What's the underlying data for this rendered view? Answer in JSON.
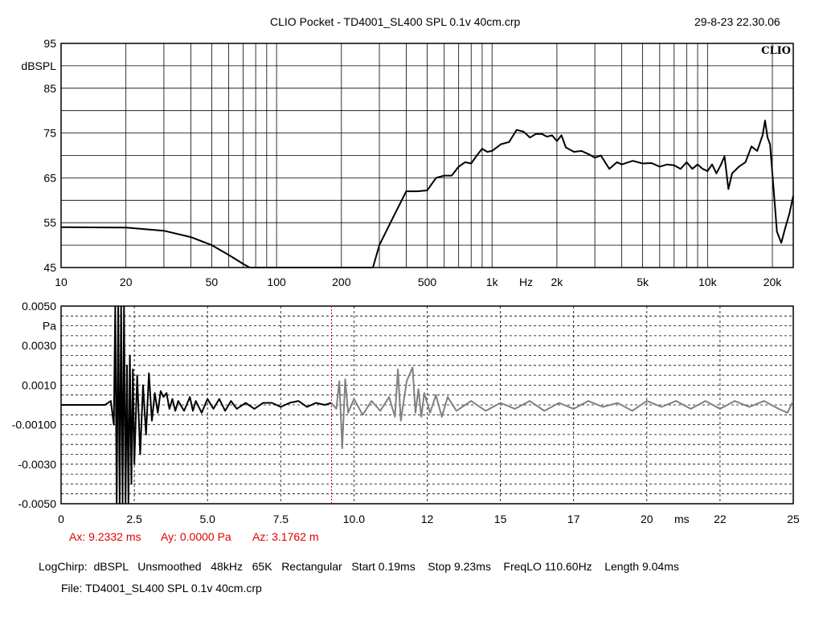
{
  "header": {
    "title": "CLIO Pocket - TD4001_SL400 SPL 0.1v 40cm.crp",
    "timestamp": "29-8-23 22.30.06",
    "logo": "CLIO"
  },
  "colors": {
    "trace": "#000000",
    "trace_after_cursor": "#808080",
    "cursor": "#cc0000",
    "readout": "#e00000"
  },
  "chart_data": [
    {
      "type": "line",
      "title": "",
      "xlabel": "Hz",
      "ylabel": "dBSPL",
      "xscale": "log",
      "xlim": [
        10,
        25000
      ],
      "ylim": [
        45,
        95
      ],
      "grid": true,
      "x_ticks": [
        "10",
        "20",
        "50",
        "100",
        "200",
        "500",
        "1k",
        "2k",
        "5k",
        "10k",
        "20k"
      ],
      "y_ticks": [
        "95",
        "85",
        "75",
        "65",
        "55",
        "45"
      ],
      "series": [
        {
          "x": [
            10,
            20,
            30,
            40,
            50,
            60,
            70,
            75,
            100,
            200,
            280,
            300,
            350,
            400,
            450,
            500,
            550,
            600,
            650,
            700,
            750,
            800,
            850,
            900,
            950,
            1000,
            1100,
            1200,
            1300,
            1400,
            1500,
            1600,
            1700,
            1800,
            1900,
            2000,
            2100,
            2200,
            2400,
            2600,
            2800,
            3000,
            3200,
            3500,
            3800,
            4000,
            4500,
            5000,
            5500,
            6000,
            6500,
            7000,
            7500,
            8000,
            8500,
            9000,
            9500,
            10000,
            10500,
            11000,
            11500,
            12000,
            12500,
            13000,
            14000,
            15000,
            16000,
            17000,
            18000,
            18500,
            19000,
            19500,
            20000,
            21000,
            22000,
            23000,
            24000,
            25000
          ],
          "y": [
            54,
            53.9,
            53.2,
            51.8,
            50,
            47.8,
            45.8,
            45,
            45,
            45,
            45,
            50,
            56.5,
            62,
            62,
            62.2,
            65,
            65.5,
            65.5,
            67.5,
            68.5,
            68.2,
            70,
            71.5,
            70.8,
            71,
            72.5,
            73,
            75.7,
            75.3,
            74,
            74.8,
            74.8,
            74.2,
            74.5,
            73.2,
            74.5,
            71.8,
            70.8,
            71,
            70.3,
            69.5,
            70,
            67,
            68.5,
            68,
            68.8,
            68.2,
            68.3,
            67.5,
            68,
            67.8,
            67,
            68.5,
            67,
            68,
            67,
            66.5,
            68,
            66,
            67.8,
            69.8,
            62.5,
            66,
            67.5,
            68.5,
            72,
            71,
            74.5,
            77.8,
            74,
            72.5,
            66,
            53,
            50.5,
            54,
            57,
            61
          ]
        }
      ]
    },
    {
      "type": "line",
      "title": "",
      "xlabel": "ms",
      "ylabel": "Pa",
      "xlim": [
        0,
        25
      ],
      "ylim": [
        -0.005,
        0.005
      ],
      "grid": true,
      "x_ticks": [
        "0",
        "2.5",
        "5.0",
        "7.5",
        "10.0",
        "12",
        "15",
        "17",
        "20",
        "22",
        "25"
      ],
      "y_ticks": [
        "0.0050",
        "0.0030",
        "0.0010",
        "-0.00100",
        "-0.0030",
        "-0.0050"
      ],
      "cursor_x": 9.2332,
      "series": [
        {
          "x": [
            0,
            1.5,
            1.7,
            1.8,
            1.85,
            1.9,
            1.95,
            2.0,
            2.05,
            2.1,
            2.15,
            2.2,
            2.25,
            2.3,
            2.35,
            2.4,
            2.45,
            2.5,
            2.6,
            2.7,
            2.8,
            2.9,
            3.0,
            3.1,
            3.2,
            3.3,
            3.4,
            3.5,
            3.6,
            3.7,
            3.8,
            3.9,
            4.0,
            4.2,
            4.4,
            4.5,
            4.6,
            4.8,
            5.0,
            5.2,
            5.4,
            5.6,
            5.8,
            6.0,
            6.3,
            6.6,
            6.9,
            7.2,
            7.5,
            7.8,
            8.1,
            8.4,
            8.7,
            9.0,
            9.23
          ],
          "y": [
            0,
            0,
            0.0002,
            -0.001,
            0.005,
            -0.005,
            0.005,
            -0.005,
            0.005,
            -0.005,
            0.005,
            -0.005,
            0.002,
            -0.005,
            0.0025,
            -0.004,
            0.0018,
            -0.003,
            0.0015,
            -0.0025,
            0.001,
            -0.0015,
            0.0016,
            -0.0008,
            0.0006,
            -0.0004,
            0.0007,
            0.0004,
            0.0006,
            -0.0002,
            0.0003,
            -0.0003,
            0.0002,
            -0.0003,
            0.0004,
            -0.0003,
            0.0002,
            -0.0004,
            0.0003,
            -0.0002,
            0.0003,
            -0.0003,
            0.0002,
            -0.0002,
            0.0001,
            -0.0002,
            0.0001,
            0.0001,
            -0.0001,
            0.0001,
            0.0002,
            -0.0001,
            0.0001,
            0.0,
            0.0001
          ]
        },
        {
          "x": [
            9.23,
            9.4,
            9.5,
            9.6,
            9.7,
            9.8,
            10.0,
            10.3,
            10.6,
            10.9,
            11.2,
            11.4,
            11.5,
            11.6,
            11.8,
            12.0,
            12.1,
            12.2,
            12.3,
            12.4,
            12.6,
            12.8,
            13.0,
            13.2,
            13.5,
            14.0,
            14.5,
            15.0,
            15.5,
            16.0,
            16.5,
            17.0,
            17.5,
            18.0,
            18.5,
            19.0,
            19.5,
            20.0,
            20.5,
            21.0,
            21.5,
            22.0,
            22.5,
            23.0,
            23.5,
            24.0,
            24.5,
            24.8,
            25.0
          ],
          "y": [
            0.0001,
            -0.0002,
            0.0012,
            -0.0022,
            0.0013,
            -0.0004,
            0.0003,
            -0.0005,
            0.0002,
            -0.0003,
            0.0004,
            -0.0006,
            0.0018,
            -0.0008,
            0.0012,
            0.0019,
            -0.0004,
            0.0008,
            -0.0006,
            0.0006,
            -0.0004,
            0.0005,
            -0.0006,
            0.0004,
            -0.0003,
            0.0002,
            -0.0003,
            0.0001,
            -0.0002,
            0.0002,
            -0.0003,
            0.0001,
            -0.0002,
            0.0002,
            -0.0001,
            0.0001,
            -0.0003,
            0.0002,
            -0.0001,
            0.0002,
            -0.0002,
            0.0002,
            -0.0002,
            0.0002,
            -0.0001,
            0.0002,
            -0.0002,
            -0.0004,
            0.0002
          ]
        }
      ]
    }
  ],
  "cursor_readout": {
    "ax": "Ax: 9.2332 ms",
    "ay": "Ay: 0.0000 Pa",
    "az": "Az: 3.1762 m"
  },
  "settings_line": "LogChirp:  dBSPL   Unsmoothed   48kHz   65K   Rectangular   Start 0.19ms    Stop 9.23ms    FreqLO 110.60Hz    Length 9.04ms",
  "file_line": "File: TD4001_SL400 SPL 0.1v 40cm.crp"
}
